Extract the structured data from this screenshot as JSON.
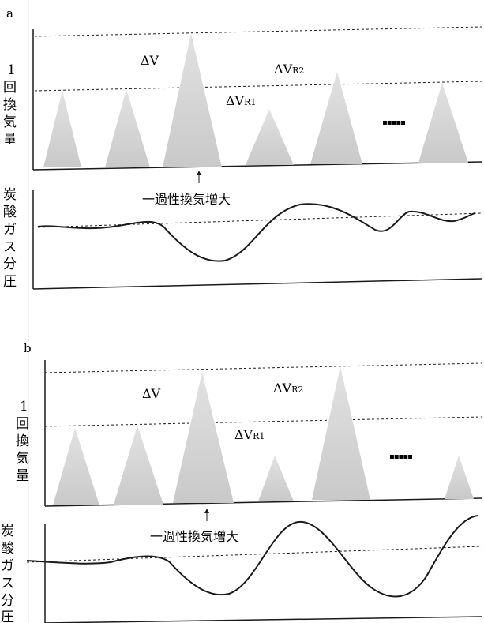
{
  "panels": [
    {
      "id": "a",
      "letter": "a",
      "vent_axis_label": [
        "1",
        "回",
        "換",
        "気",
        "量"
      ],
      "co2_axis_label": [
        "炭",
        "酸",
        "ガ",
        "ス",
        "分",
        "圧"
      ],
      "label_dv": "ΔV",
      "label_dvr1_main": "ΔV",
      "label_dvr1_sub": "R1",
      "label_dvr2_main": "ΔV",
      "label_dvr2_sub": "R2",
      "ellipsis": "▪▪▪▪▪",
      "arrow_caption": "一過性換気増大"
    },
    {
      "id": "b",
      "letter": "b",
      "vent_axis_label": [
        "1",
        "回",
        "換",
        "気",
        "量"
      ],
      "co2_axis_label": [
        "炭",
        "酸",
        "ガ",
        "ス",
        "分",
        "圧"
      ],
      "label_dv": "ΔV",
      "label_dvr1_main": "ΔV",
      "label_dvr1_sub": "R1",
      "label_dvr2_main": "ΔV",
      "label_dvr2_sub": "R2",
      "ellipsis": "▪▪▪▪▪",
      "arrow_caption": "一過性換気増大"
    }
  ],
  "colors": {
    "triangle_fill": "#d4d4d4",
    "line": "#1a1a1a"
  }
}
